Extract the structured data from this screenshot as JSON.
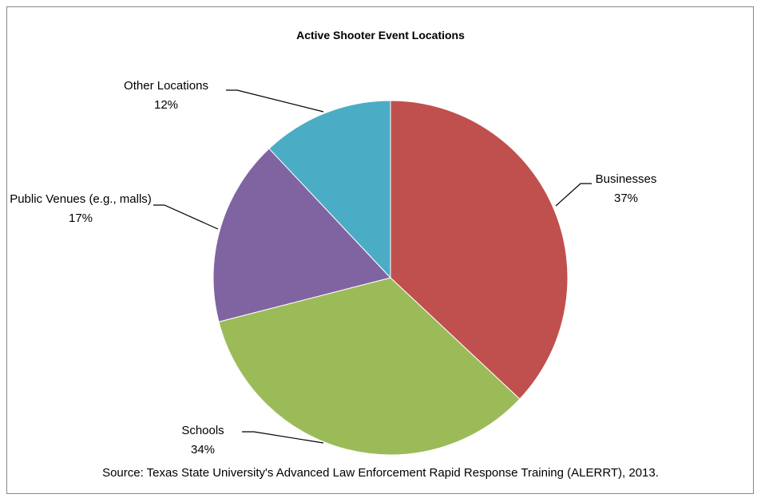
{
  "chart_data": {
    "type": "pie",
    "title": "Active Shooter Event Locations",
    "categories": [
      "Businesses",
      "Schools",
      "Public Venues (e.g., malls)",
      "Other Locations"
    ],
    "values": [
      37,
      34,
      17,
      12
    ],
    "value_labels": [
      "37%",
      "34%",
      "17%",
      "12%"
    ],
    "colors": [
      "#c0504d",
      "#9bbb59",
      "#8064a2",
      "#4bacc6"
    ],
    "source": "Source:  Texas State University's Advanced Law Enforcement Rapid Response Training (ALERRT), 2013."
  }
}
